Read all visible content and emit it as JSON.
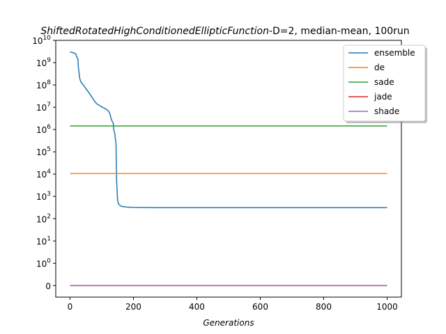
{
  "chart_data": {
    "type": "line",
    "title": {
      "italic": "ShiftedRotatedHighConditionedEllipticFunction",
      "rest": "-D=2, median-mean, 100run"
    },
    "xlabel": "Generations",
    "ylabel": "",
    "xlim": [
      -45,
      1045
    ],
    "x_ticks": [
      0,
      200,
      400,
      600,
      800,
      1000
    ],
    "y_scale": "symlog",
    "y_ticks": [
      {
        "value": 0,
        "base": "0",
        "exp": ""
      },
      {
        "value": 1,
        "base": "10",
        "exp": "0"
      },
      {
        "value": 10,
        "base": "10",
        "exp": "1"
      },
      {
        "value": 100,
        "base": "10",
        "exp": "2"
      },
      {
        "value": 1000,
        "base": "10",
        "exp": "3"
      },
      {
        "value": 10000,
        "base": "10",
        "exp": "4"
      },
      {
        "value": 100000,
        "base": "10",
        "exp": "5"
      },
      {
        "value": 1000000,
        "base": "10",
        "exp": "6"
      },
      {
        "value": 10000000,
        "base": "10",
        "exp": "7"
      },
      {
        "value": 100000000,
        "base": "10",
        "exp": "8"
      },
      {
        "value": 1000000000,
        "base": "10",
        "exp": "9"
      },
      {
        "value": 10000000000,
        "base": "10",
        "exp": "10"
      }
    ],
    "legend_position": "top-right",
    "grid": false,
    "series": [
      {
        "name": "ensemble",
        "color": "#1f77b4",
        "x": [
          0,
          10,
          18,
          22,
          25,
          26,
          28,
          30,
          33,
          37,
          42,
          48,
          55,
          62,
          70,
          78,
          85,
          95,
          105,
          115,
          122,
          126,
          130,
          133,
          136,
          138,
          139,
          141,
          142,
          144,
          145,
          146,
          147,
          148,
          149,
          150,
          151,
          152,
          155,
          160,
          168,
          180,
          200,
          250,
          300,
          400,
          500,
          600,
          700,
          800,
          900,
          1000
        ],
        "y": [
          3000000000,
          2800000000,
          2500000000,
          1700000000,
          1500000000,
          700000000,
          400000000,
          220000000,
          150000000,
          120000000,
          100000000,
          75000000,
          55000000,
          40000000,
          27000000,
          18000000,
          14000000,
          11500000,
          9500000,
          8000000,
          6500000,
          5000000,
          3000000,
          2300000,
          2000000,
          1000000,
          800000,
          700000,
          500000,
          300000,
          250000,
          40000,
          5000,
          2500,
          1200,
          700,
          600,
          500,
          420,
          370,
          345,
          330,
          318,
          312,
          312,
          312,
          312,
          312,
          312,
          312,
          312,
          312
        ]
      },
      {
        "name": "de",
        "color": "#ff7f0e",
        "x": [
          0,
          1000
        ],
        "y": [
          10600,
          10600
        ]
      },
      {
        "name": "sade",
        "color": "#2ca02c",
        "x": [
          0,
          1000
        ],
        "y": [
          1450000,
          1450000
        ]
      },
      {
        "name": "jade",
        "color": "#d62728",
        "x": [
          0,
          1000
        ],
        "y": [
          0,
          0
        ]
      },
      {
        "name": "shade",
        "color": "#9467bd",
        "x": [
          0,
          1000
        ],
        "y": [
          0,
          0
        ]
      }
    ]
  }
}
